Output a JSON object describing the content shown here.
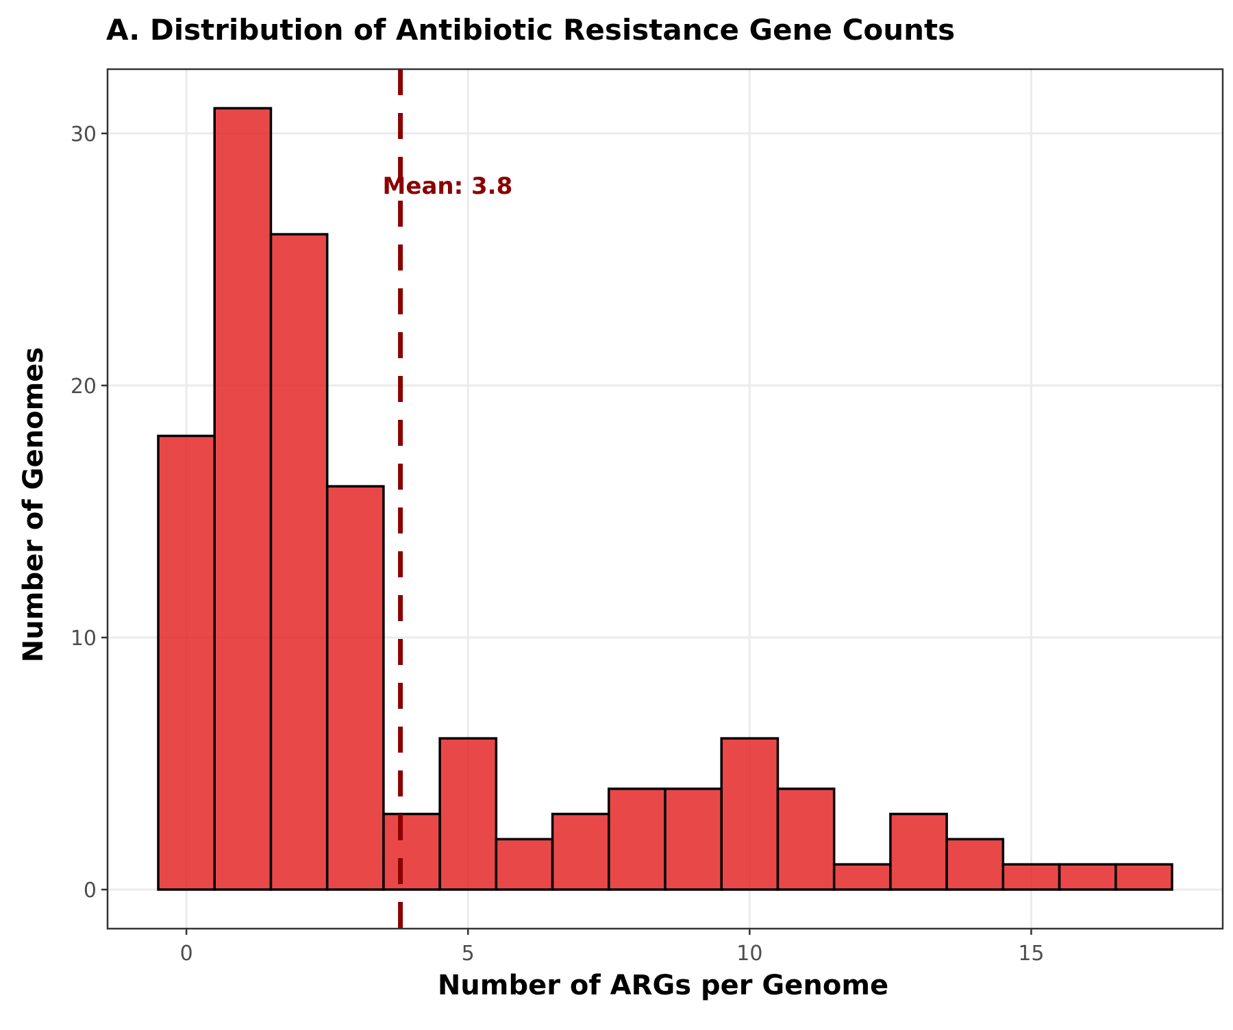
{
  "chart_data": {
    "type": "bar",
    "title": "A. Distribution of Antibiotic Resistance Gene Counts",
    "xlabel": "Number of ARGs per Genome",
    "ylabel": "Number of Genomes",
    "bin_width": 1,
    "bins": [
      {
        "x": 0,
        "count": 18
      },
      {
        "x": 1,
        "count": 31
      },
      {
        "x": 2,
        "count": 26
      },
      {
        "x": 3,
        "count": 16
      },
      {
        "x": 4,
        "count": 3
      },
      {
        "x": 5,
        "count": 6
      },
      {
        "x": 6,
        "count": 2
      },
      {
        "x": 7,
        "count": 3
      },
      {
        "x": 8,
        "count": 4
      },
      {
        "x": 9,
        "count": 4
      },
      {
        "x": 10,
        "count": 6
      },
      {
        "x": 11,
        "count": 4
      },
      {
        "x": 12,
        "count": 1
      },
      {
        "x": 13,
        "count": 3
      },
      {
        "x": 14,
        "count": 2
      },
      {
        "x": 15,
        "count": 1
      },
      {
        "x": 16,
        "count": 1
      },
      {
        "x": 17,
        "count": 1
      }
    ],
    "xlim": [
      -1.4,
      18.4
    ],
    "ylim": [
      -1.55,
      32.55
    ],
    "x_ticks": [
      0,
      5,
      10,
      15
    ],
    "y_ticks": [
      0,
      10,
      20,
      30
    ],
    "mean": {
      "value": 3.8,
      "label": "Mean: 3.8"
    },
    "grid": true,
    "colors": {
      "bar_fill": "#e41a1c",
      "bar_fill_opacity": 0.8,
      "bar_stroke": "#000000",
      "mean_line": "#8b0000",
      "grid": "#ebebeb",
      "panel_border": "#333333",
      "tick_text": "#4d4d4d"
    }
  }
}
